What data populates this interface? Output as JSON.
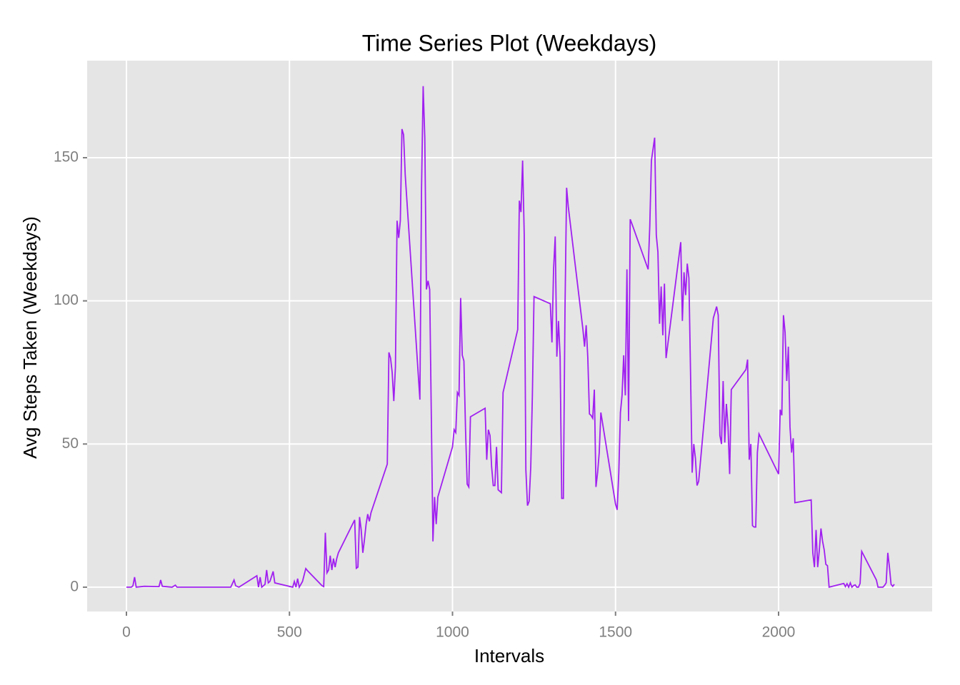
{
  "chart_data": {
    "type": "line",
    "title": "Time Series Plot (Weekdays)",
    "x_label": "Intervals",
    "y_label": "Avg Steps Taken (Weekdays)",
    "x": [
      0,
      15,
      20,
      25,
      30,
      55,
      100,
      105,
      110,
      140,
      150,
      155,
      200,
      300,
      320,
      330,
      335,
      345,
      400,
      405,
      410,
      415,
      425,
      430,
      435,
      440,
      450,
      455,
      510,
      515,
      520,
      525,
      530,
      540,
      550,
      555,
      600,
      605,
      610,
      615,
      620,
      625,
      630,
      635,
      640,
      645,
      650,
      700,
      705,
      710,
      715,
      720,
      725,
      730,
      735,
      740,
      745,
      750,
      800,
      805,
      810,
      815,
      820,
      825,
      830,
      835,
      840,
      845,
      850,
      855,
      900,
      905,
      910,
      915,
      920,
      925,
      930,
      935,
      940,
      945,
      950,
      955,
      1000,
      1005,
      1010,
      1015,
      1020,
      1025,
      1030,
      1035,
      1040,
      1045,
      1050,
      1055,
      1100,
      1105,
      1110,
      1115,
      1120,
      1125,
      1130,
      1135,
      1140,
      1145,
      1150,
      1155,
      1200,
      1205,
      1210,
      1215,
      1220,
      1225,
      1230,
      1235,
      1240,
      1245,
      1250,
      1300,
      1305,
      1310,
      1315,
      1320,
      1325,
      1330,
      1335,
      1340,
      1345,
      1350,
      1355,
      1400,
      1405,
      1410,
      1415,
      1420,
      1425,
      1430,
      1435,
      1440,
      1445,
      1450,
      1455,
      1500,
      1505,
      1510,
      1515,
      1520,
      1525,
      1530,
      1535,
      1540,
      1545,
      1550,
      1600,
      1605,
      1610,
      1615,
      1620,
      1625,
      1630,
      1635,
      1640,
      1645,
      1650,
      1655,
      1700,
      1705,
      1710,
      1715,
      1720,
      1725,
      1730,
      1735,
      1740,
      1745,
      1750,
      1755,
      1800,
      1805,
      1810,
      1815,
      1820,
      1825,
      1830,
      1835,
      1840,
      1845,
      1850,
      1855,
      1900,
      1905,
      1910,
      1915,
      1920,
      1925,
      1930,
      1935,
      1940,
      2000,
      2005,
      2010,
      2015,
      2020,
      2025,
      2030,
      2035,
      2040,
      2045,
      2050,
      2100,
      2105,
      2110,
      2115,
      2120,
      2125,
      2130,
      2135,
      2140,
      2145,
      2150,
      2155,
      2200,
      2205,
      2210,
      2215,
      2220,
      2225,
      2230,
      2235,
      2240,
      2245,
      2250,
      2255,
      2300,
      2305,
      2310,
      2315,
      2320,
      2325,
      2330,
      2335,
      2340,
      2345,
      2350,
      2355
    ],
    "series": [
      {
        "color": "#a020f0",
        "values": [
          0,
          0,
          0.5,
          3.5,
          0,
          0.3,
          0.2,
          2.5,
          0.3,
          0,
          0.7,
          0,
          0,
          0,
          0,
          2.5,
          0.5,
          0,
          4,
          0,
          3.5,
          0,
          1,
          6,
          1.5,
          2,
          5.5,
          1.5,
          0,
          2,
          0,
          3,
          0,
          2,
          6.5,
          5.8,
          0.5,
          0.2,
          19,
          5,
          6,
          11,
          6,
          10,
          7,
          10,
          12,
          23.5,
          6.6,
          7,
          24.5,
          20,
          12,
          16.6,
          22,
          25.5,
          23,
          26,
          43,
          82,
          80,
          75,
          65,
          77,
          128,
          122,
          128,
          160,
          158,
          144,
          65.5,
          139,
          175,
          157,
          104,
          107,
          104,
          60,
          16,
          31.5,
          22,
          31.5,
          49,
          55,
          54,
          68,
          67,
          101,
          81,
          79,
          55,
          36,
          35,
          59.5,
          62.5,
          44.5,
          55,
          53,
          42,
          35.5,
          35.5,
          49,
          34,
          33.5,
          33,
          68,
          90,
          135,
          131,
          149,
          123,
          41,
          28.5,
          30,
          42,
          67,
          101.5,
          99,
          85.5,
          111,
          122.5,
          80.5,
          93,
          80.5,
          31,
          31,
          97,
          139.5,
          133,
          90,
          84,
          91.5,
          80,
          60.5,
          60,
          59,
          69,
          35,
          40,
          47,
          61,
          29,
          27,
          40,
          61,
          67,
          81,
          67,
          111,
          58,
          128.5,
          127,
          111,
          126,
          149,
          153,
          157,
          123,
          117,
          92,
          105,
          88,
          106,
          80,
          120.5,
          93,
          110,
          102,
          113,
          108,
          75,
          40,
          50,
          45,
          35.5,
          37,
          94,
          96,
          98,
          95,
          53,
          50,
          72,
          50.5,
          64,
          56,
          39.5,
          69,
          76,
          79.5,
          44.5,
          50,
          21.5,
          21,
          21,
          47,
          53.5,
          39.5,
          62,
          60,
          95,
          89,
          72,
          84,
          56,
          47,
          52,
          29.5,
          30.5,
          12,
          7,
          20,
          7,
          13,
          20.5,
          16,
          13,
          8,
          7.5,
          0,
          1.3,
          0.2,
          1.2,
          0,
          1.5,
          0,
          0.6,
          0.8,
          0,
          0,
          1.3,
          12.5,
          2.5,
          0,
          0,
          0,
          0,
          0.6,
          1.5,
          12,
          7,
          1,
          0.3,
          1
        ]
      }
    ],
    "xlim": [
      -120.5,
      2471
    ],
    "ylim": [
      -8.5,
      183.9
    ],
    "xticks": [
      0,
      500,
      1000,
      1500,
      2000
    ],
    "yticks": [
      0,
      50,
      100,
      150
    ],
    "grid": true
  }
}
